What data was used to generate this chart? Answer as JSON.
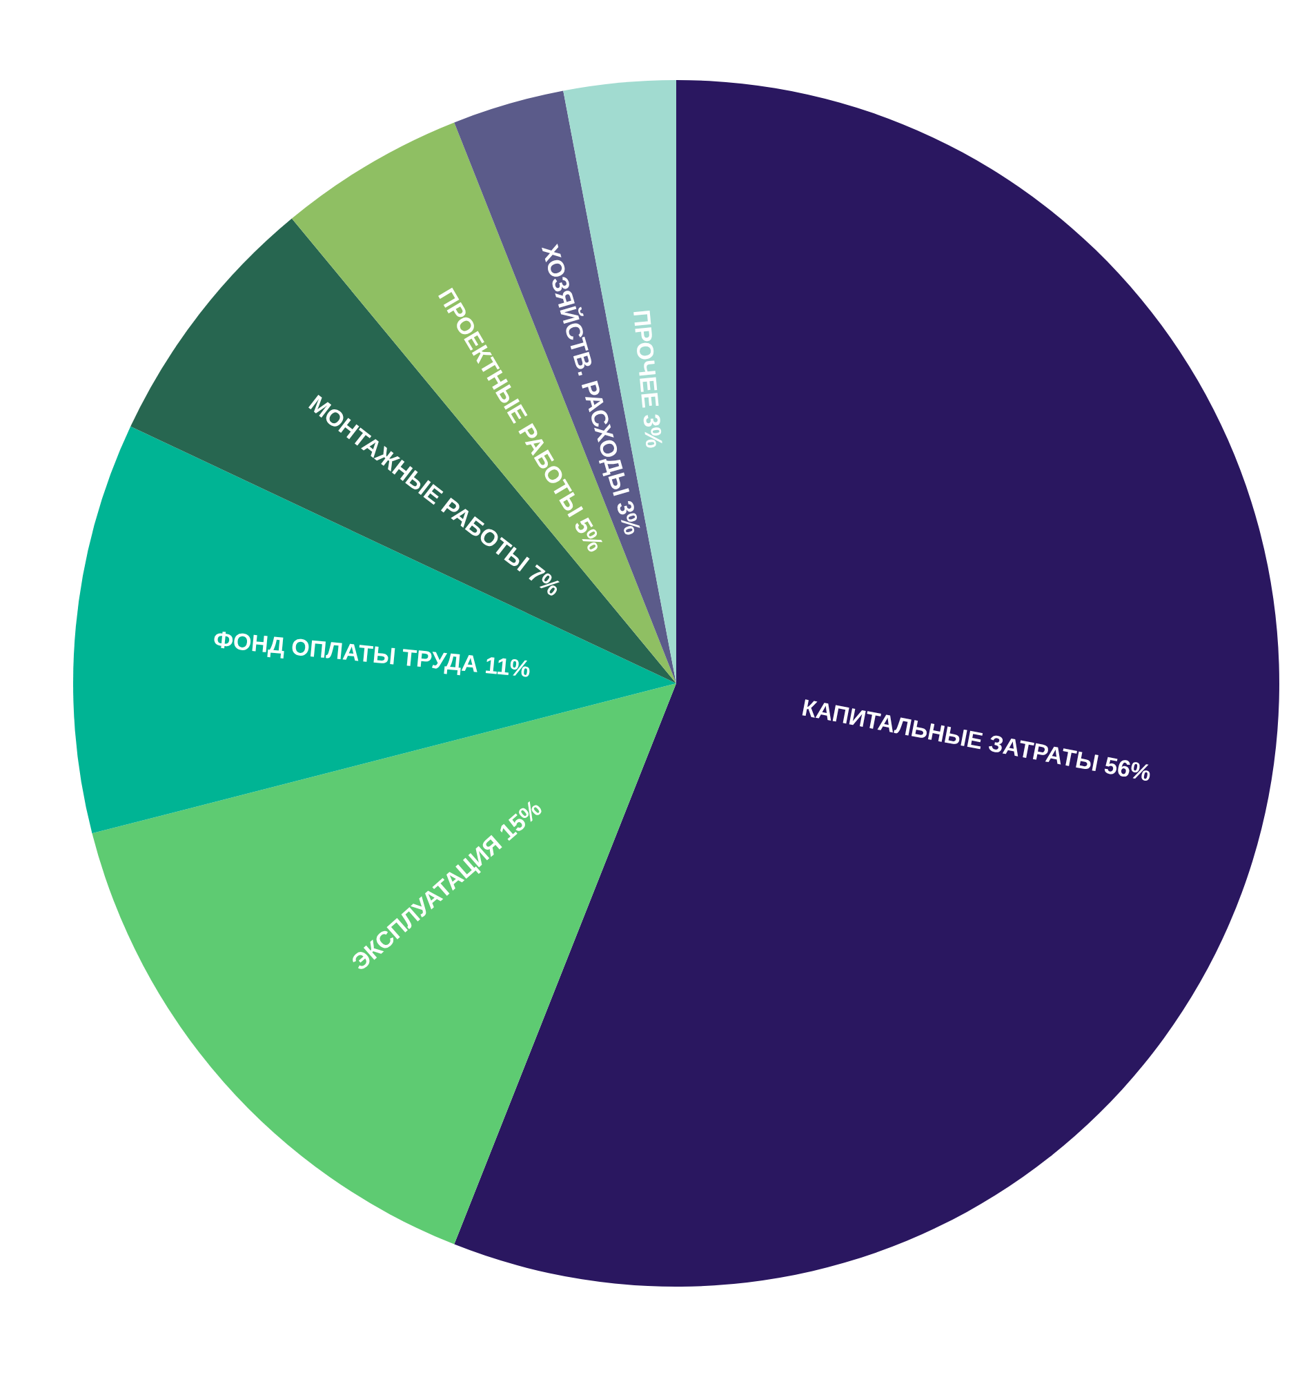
{
  "chart_data": {
    "type": "pie",
    "categories": [
      "КАПИТАЛЬНЫЕ ЗАТРАТЫ",
      "ЭКСПЛУАТАЦИЯ",
      "ФОНД ОПЛАТЫ ТРУДА",
      "МОНТАЖНЫЕ РАБОТЫ",
      "ПРОЕКТНЫЕ РАБОТЫ",
      "ХОЗЯЙСТВ. РАСХОДЫ",
      "ПРОЧЕЕ"
    ],
    "values": [
      56,
      15,
      11,
      7,
      5,
      3,
      3
    ],
    "value_labels": [
      "56%",
      "15%",
      "11%",
      "7%",
      "5%",
      "3%",
      "3%"
    ],
    "colors": [
      "#2a1760",
      "#5ecb72",
      "#00b494",
      "#276650",
      "#8fbf63",
      "#5b5b8a",
      "#a1dbd0"
    ],
    "legend": false
  }
}
